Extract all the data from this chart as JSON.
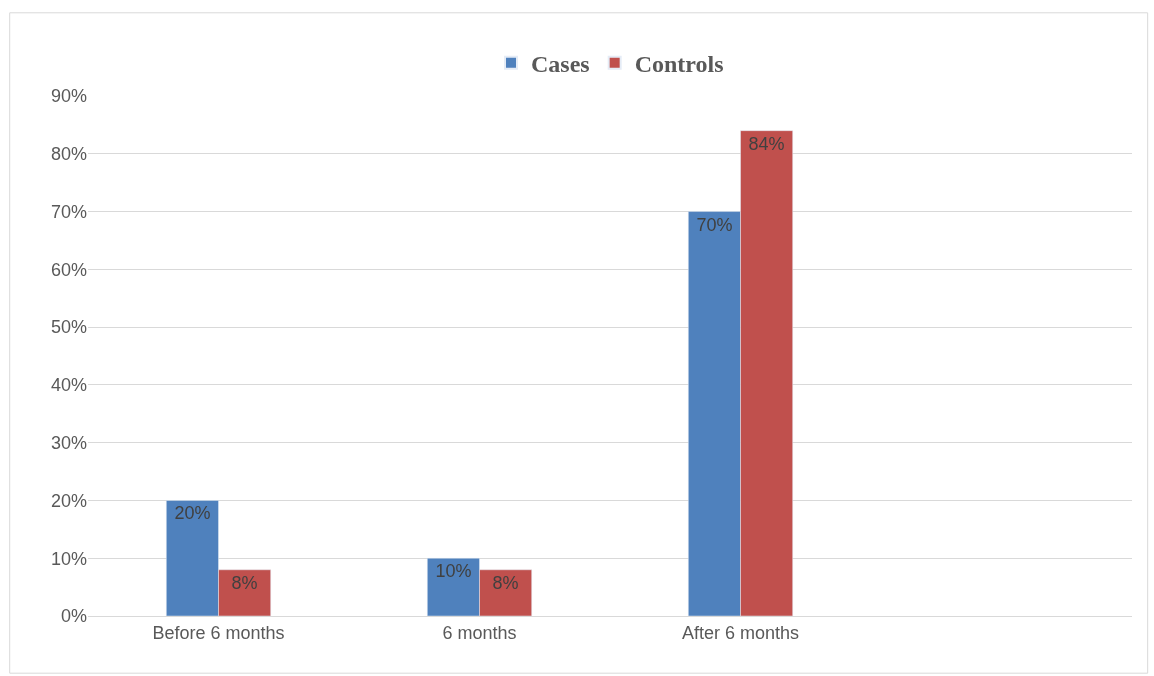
{
  "chart_data": {
    "type": "bar",
    "categories": [
      "Before 6 months",
      "6 months",
      "After 6 months",
      null
    ],
    "series": [
      {
        "name": "Cases",
        "color": "#4f81bd",
        "values": [
          20,
          10,
          70,
          null
        ],
        "value_labels": [
          "20%",
          "10%",
          "70%",
          null
        ]
      },
      {
        "name": "Controls",
        "color": "#c0504d",
        "values": [
          8,
          8,
          84,
          null
        ],
        "value_labels": [
          "8%",
          "8%",
          "84%",
          null
        ]
      }
    ],
    "ylim": [
      0,
      90
    ],
    "yticks": [
      {
        "value": 0,
        "label": "0%"
      },
      {
        "value": 10,
        "label": "10%"
      },
      {
        "value": 20,
        "label": "20%"
      },
      {
        "value": 30,
        "label": "30%"
      },
      {
        "value": 40,
        "label": "40%"
      },
      {
        "value": 50,
        "label": "50%"
      },
      {
        "value": 60,
        "label": "60%"
      },
      {
        "value": 70,
        "label": "70%"
      },
      {
        "value": 80,
        "label": "80%"
      },
      {
        "value": 90,
        "label": "90%"
      }
    ],
    "grid": "y",
    "legend": "top"
  }
}
